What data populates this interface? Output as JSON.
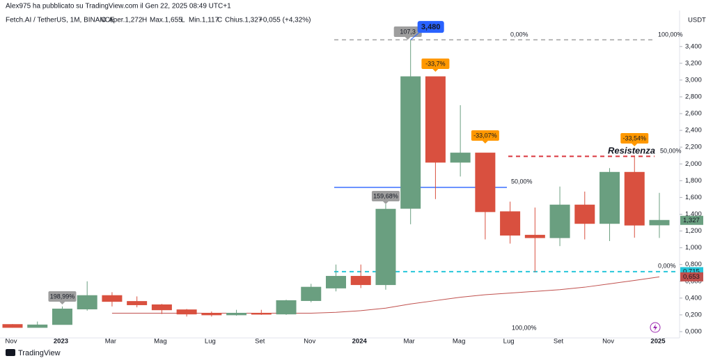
{
  "header": {
    "author_line": "Alex975 ha pubblicato su TradingView.com il Gen 22, 2025 08:49 UTC+1",
    "footer": "TradingView"
  },
  "chart_data": {
    "type": "candlestick",
    "legend": {
      "symbol": "Fetch.AI / TetherUS, 1M, BINANCE",
      "o": "O",
      "open": "Aper.1,272",
      "h": "H",
      "high": "Max.1,655",
      "l": "L",
      "low": "Min.1,117",
      "c": "C",
      "close": "Chius.1,327",
      "change": "+0,055 (+4,32%)"
    },
    "y_unit": "USDT",
    "categories": [
      "Nov",
      null,
      "2023",
      null,
      "Mar",
      null,
      "Mag",
      null,
      "Lug",
      null,
      "Set",
      null,
      "Nov",
      null,
      "2024",
      null,
      "Mar",
      null,
      "Mag",
      null,
      "Lug",
      null,
      "Set",
      null,
      "Nov",
      null,
      "2025"
    ],
    "open": [
      0.085,
      0.05,
      0.085,
      0.27,
      0.43,
      0.36,
      0.32,
      0.26,
      0.22,
      0.2,
      0.22,
      0.21,
      0.37,
      0.52,
      0.66,
      0.56,
      1.47,
      3.04,
      2.02,
      2.13,
      1.43,
      1.15,
      1.12,
      1.51,
      1.29,
      1.9,
      1.272
    ],
    "high": [
      0.09,
      0.12,
      0.3,
      0.6,
      0.47,
      0.42,
      0.33,
      0.27,
      0.24,
      0.26,
      0.26,
      0.38,
      0.57,
      0.8,
      0.8,
      1.52,
      3.48,
      3.04,
      2.7,
      2.13,
      1.55,
      1.48,
      1.73,
      1.67,
      1.95,
      2.1,
      1.655
    ],
    "low": [
      0.045,
      0.05,
      0.085,
      0.25,
      0.3,
      0.29,
      0.21,
      0.18,
      0.18,
      0.19,
      0.2,
      0.2,
      0.35,
      0.48,
      0.52,
      0.5,
      1.28,
      1.58,
      1.85,
      1.1,
      1.05,
      0.71,
      1.02,
      1.1,
      1.08,
      1.12,
      1.117
    ],
    "close": [
      0.05,
      0.08,
      0.27,
      0.43,
      0.36,
      0.32,
      0.26,
      0.21,
      0.2,
      0.22,
      0.21,
      0.37,
      0.53,
      0.66,
      0.56,
      1.46,
      3.04,
      2.02,
      2.13,
      1.43,
      1.15,
      1.12,
      1.51,
      1.29,
      1.9,
      1.27,
      1.327
    ],
    "up_color": "#6a9f80",
    "down_color": "#d9503f",
    "ma": {
      "color": "#c0504d",
      "values": [
        null,
        null,
        null,
        null,
        0.22,
        0.22,
        0.22,
        0.22,
        0.22,
        0.22,
        0.22,
        0.22,
        0.22,
        0.23,
        0.25,
        0.28,
        0.33,
        0.37,
        0.41,
        0.44,
        0.46,
        0.48,
        0.5,
        0.53,
        0.57,
        0.61,
        0.653
      ]
    },
    "ylim": [
      -0.075,
      3.83
    ],
    "yticks": [
      {
        "value": 0,
        "label": "0,000"
      },
      {
        "value": 0.2,
        "label": "0,200"
      },
      {
        "value": 0.4,
        "label": "0,400"
      },
      {
        "value": 0.6,
        "label": "0,600"
      },
      {
        "value": 0.8,
        "label": "0,800"
      },
      {
        "value": 1,
        "label": "1,000"
      },
      {
        "value": 1.2,
        "label": "1,200"
      },
      {
        "value": 1.4,
        "label": "1,400"
      },
      {
        "value": 1.6,
        "label": "1,600"
      },
      {
        "value": 1.8,
        "label": "1,800"
      },
      {
        "value": 2,
        "label": "2,000"
      },
      {
        "value": 2.2,
        "label": "2,200"
      },
      {
        "value": 2.4,
        "label": "2,400"
      },
      {
        "value": 2.6,
        "label": "2,600"
      },
      {
        "value": 2.8,
        "label": "2,800"
      },
      {
        "value": 3,
        "label": "3,000"
      },
      {
        "value": 3.2,
        "label": "3,200"
      },
      {
        "value": 3.4,
        "label": "3,400"
      }
    ],
    "hlines": [
      {
        "value": 3.48,
        "color": "#b8b8b8",
        "dashed": true
      },
      {
        "value": 2.09,
        "color": "#d9363e",
        "dashed": true
      },
      {
        "value": 1.72,
        "color": "#2962ff",
        "dashed": false
      },
      {
        "value": 0.715,
        "color": "#26c6da",
        "dashed": true
      }
    ],
    "peak_tag": {
      "value": 3.48,
      "label": "3,480",
      "color": "#2962ff"
    },
    "price_tags": [
      {
        "value": 1.327,
        "label": "1,327",
        "color": "#6a9f80"
      },
      {
        "value": 0.715,
        "label": "0,715",
        "color": "#26c6da"
      },
      {
        "value": 0.653,
        "label": "0,653",
        "color": "#c0504d"
      }
    ],
    "change_labels": [
      {
        "text": "198,99%",
        "color": "#9e9e9e"
      },
      {
        "text": "159,68%",
        "color": "#9e9e9e"
      },
      {
        "text": "107,3",
        "color": "#9e9e9e"
      },
      {
        "text": "-33,7%",
        "color": "#ff9800"
      },
      {
        "text": "-33,07%",
        "color": "#ff9800"
      },
      {
        "text": "-33,54%",
        "color": "#ff9800"
      }
    ],
    "fib_labels": [
      {
        "text": "0,00%",
        "color": "#d0d0d0"
      },
      {
        "text": "100,00%",
        "color": "#d0d0d0"
      },
      {
        "text": "50,00%",
        "color": "#d9363e"
      },
      {
        "text": "50,00%",
        "color": "#2962ff"
      },
      {
        "text": "0,00%",
        "color": "#d0d0d0"
      },
      {
        "text": "100,00%",
        "color": "#d0d0d0"
      }
    ],
    "annotation": {
      "text": "Resistenza",
      "color": "#e0475a"
    }
  }
}
